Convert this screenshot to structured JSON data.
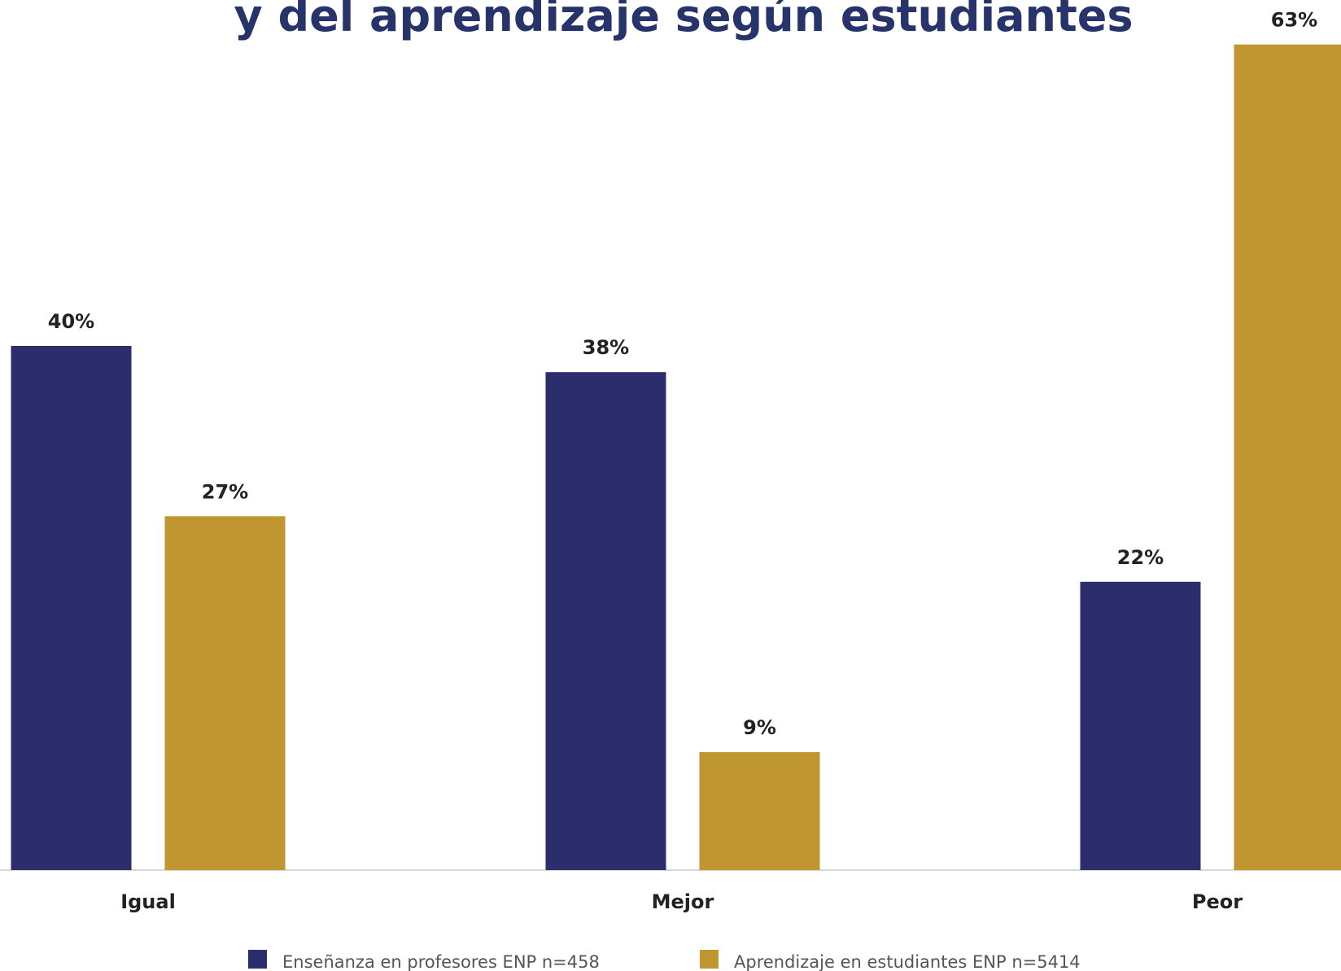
{
  "chart_data": {
    "type": "bar",
    "title": "y del aprendizaje según estudiantes",
    "categories": [
      "Igual",
      "Mejor",
      "Peor"
    ],
    "series": [
      {
        "name": "Enseñanza en profesores ENP n=458",
        "color": "#2b2d6c",
        "values": [
          40,
          38,
          22
        ],
        "value_labels": [
          "40%",
          "38%",
          "22%"
        ]
      },
      {
        "name": "Aprendizaje en estudiantes ENP  n=5414",
        "color": "#bf962f",
        "values": [
          27,
          9,
          63
        ],
        "value_labels": [
          "27%",
          "9%",
          "63%"
        ]
      }
    ]
  }
}
